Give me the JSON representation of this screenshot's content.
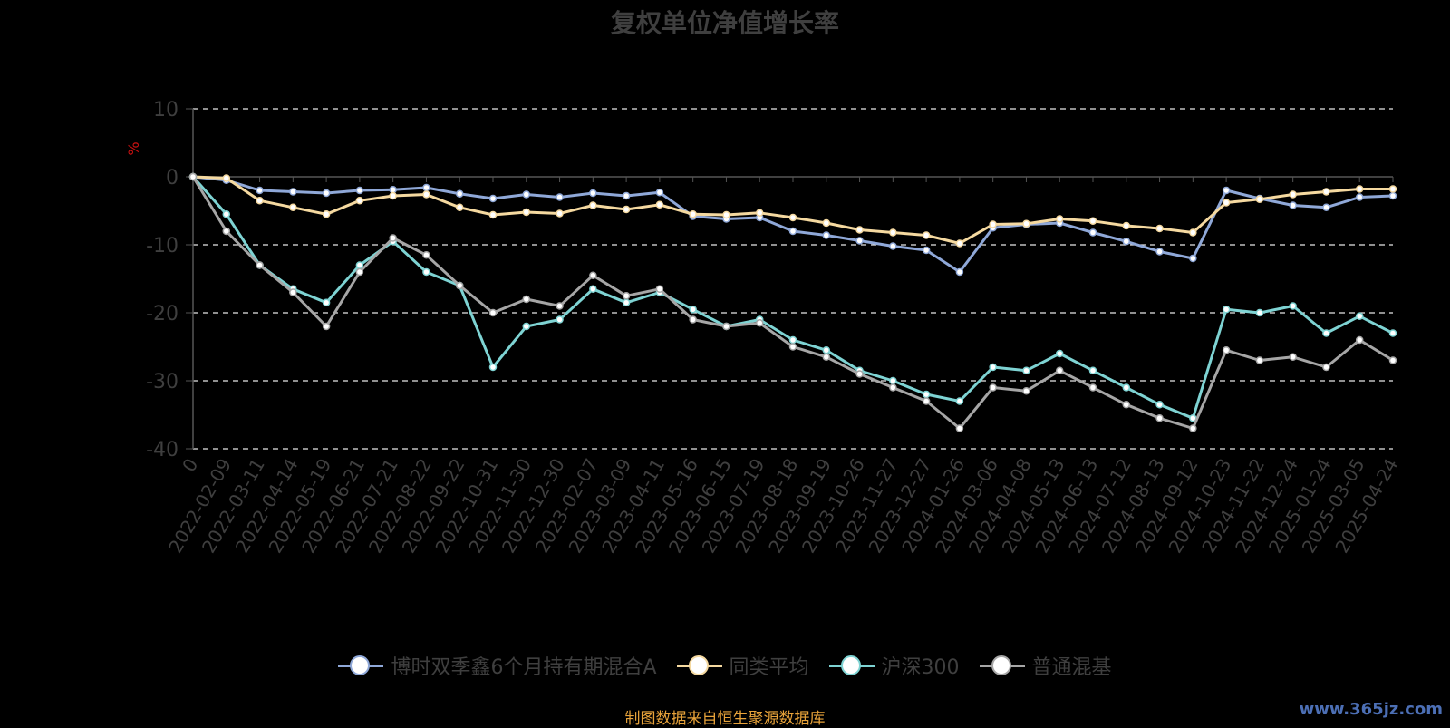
{
  "title": "复权单位净值增长率",
  "source": "制图数据来自恒生聚源数据库",
  "watermark": "www.365jz.com",
  "legend_icon": "circle-line",
  "chart_data": {
    "type": "line",
    "title": "复权单位净值增长率",
    "ylabel": "%",
    "ylim": [
      -40,
      10
    ],
    "yticks": [
      10,
      0,
      -10,
      -20,
      -30,
      -40
    ],
    "grid": "horizontal-dashed",
    "legend_position": "bottom",
    "categories": [
      "0",
      "2022-02-09",
      "2022-03-11",
      "2022-04-14",
      "2022-05-19",
      "2022-06-21",
      "2022-07-21",
      "2022-08-22",
      "2022-09-22",
      "2022-10-31",
      "2022-11-30",
      "2022-12-30",
      "2023-02-07",
      "2023-03-09",
      "2023-04-11",
      "2023-05-16",
      "2023-06-15",
      "2023-07-19",
      "2023-08-18",
      "2023-09-19",
      "2023-10-26",
      "2023-11-27",
      "2023-12-27",
      "2024-01-26",
      "2024-03-06",
      "2024-04-08",
      "2024-05-13",
      "2024-06-13",
      "2024-07-12",
      "2024-08-13",
      "2024-09-12",
      "2024-10-23",
      "2024-11-22",
      "2024-12-24",
      "2025-01-24",
      "2025-03-05",
      "2025-04-24"
    ],
    "series": [
      {
        "name": "博时双季鑫6个月持有期混合A",
        "color": "#8fa8d8",
        "values": [
          0,
          -0.5,
          -2.0,
          -2.2,
          -2.4,
          -2.0,
          -1.9,
          -1.6,
          -2.5,
          -3.2,
          -2.6,
          -3.0,
          -2.4,
          -2.8,
          -2.3,
          -5.8,
          -6.2,
          -6.0,
          -8.0,
          -8.6,
          -9.4,
          -10.2,
          -10.8,
          -14.0,
          -7.5,
          -7.0,
          -6.8,
          -8.2,
          -9.5,
          -11.0,
          -12.0,
          -2.0,
          -3.2,
          -4.2,
          -4.5,
          -3.0,
          -2.8
        ]
      },
      {
        "name": "同类平均",
        "color": "#f5d9a0",
        "values": [
          0,
          -0.2,
          -3.5,
          -4.5,
          -5.5,
          -3.5,
          -2.8,
          -2.6,
          -4.5,
          -5.6,
          -5.2,
          -5.4,
          -4.2,
          -4.8,
          -4.1,
          -5.5,
          -5.6,
          -5.3,
          -6.0,
          -6.8,
          -7.8,
          -8.2,
          -8.6,
          -9.8,
          -7.0,
          -6.9,
          -6.2,
          -6.5,
          -7.2,
          -7.6,
          -8.2,
          -3.8,
          -3.3,
          -2.6,
          -2.2,
          -1.8,
          -1.8
        ]
      },
      {
        "name": "沪深300",
        "color": "#7ed3d3",
        "values": [
          0,
          -5.5,
          -13.0,
          -16.5,
          -18.5,
          -13.0,
          -9.5,
          -14.0,
          -16.0,
          -28.0,
          -22.0,
          -21.0,
          -16.5,
          -18.5,
          -17.0,
          -19.5,
          -22.0,
          -21.0,
          -24.0,
          -25.5,
          -28.5,
          -30.0,
          -32.0,
          -33.0,
          -28.0,
          -28.5,
          -26.0,
          -28.5,
          -31.0,
          -33.5,
          -35.5,
          -19.5,
          -20.0,
          -19.0,
          -23.0,
          -20.5,
          -23.0
        ]
      },
      {
        "name": "普通混基",
        "color": "#a6a6a6",
        "values": [
          0,
          -8.0,
          -13.0,
          -17.0,
          -22.0,
          -14.0,
          -9.0,
          -11.5,
          -16.0,
          -20.0,
          -18.0,
          -19.0,
          -14.5,
          -17.5,
          -16.5,
          -21.0,
          -22.0,
          -21.5,
          -25.0,
          -26.5,
          -29.0,
          -31.0,
          -33.0,
          -37.0,
          -31.0,
          -31.5,
          -28.5,
          -31.0,
          -33.5,
          -35.5,
          -37.0,
          -25.5,
          -27.0,
          -26.5,
          -28.0,
          -24.0,
          -27.0
        ]
      }
    ]
  }
}
